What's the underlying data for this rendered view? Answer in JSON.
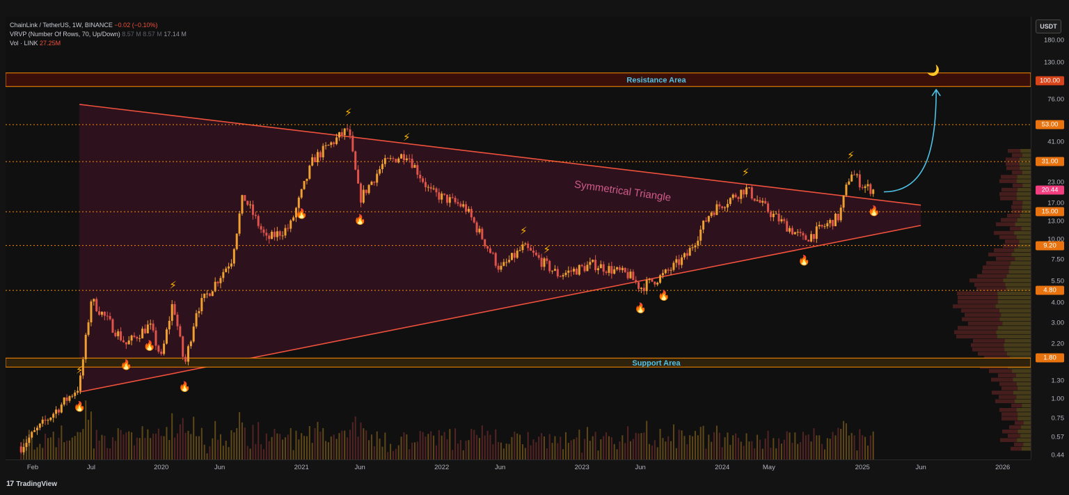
{
  "legend": {
    "symbol": "ChainLink / TetherUS, 1W, BINANCE",
    "change": "−0.02 (−0.10%)",
    "vrvp": "VRVP (Number Of Rows, 70, Up/Down)",
    "vrvp_v1": "8.57 M",
    "vrvp_v2": "8.57 M",
    "vrvp_v3": "17.14 M",
    "vol_label": "Vol · LINK",
    "vol_value": "27.25M"
  },
  "currency_button": "USDT",
  "footer": {
    "logo": "17",
    "brand": "TradingView"
  },
  "colors": {
    "background": "#101010",
    "accent_red": "#f0513c",
    "annotation_blue": "#4fc3e8",
    "level_orange": "#ff8c00",
    "triangle_fill": "#3a1424",
    "current_price_tag": "#f23d7f"
  },
  "chart_data": {
    "type": "candlestick",
    "scale": "log",
    "y_ticks": [
      180,
      130,
      100,
      76,
      53,
      41,
      31,
      23,
      20.44,
      17,
      15,
      13,
      10,
      9.2,
      7.5,
      5.5,
      4.8,
      4,
      3,
      2.2,
      1.8,
      1.3,
      1,
      0.75,
      0.57,
      0.44
    ],
    "y_tick_labels": [
      "180.00",
      "130.00",
      "100.00",
      "76.00",
      "53.00",
      "41.00",
      "31.00",
      "23.00",
      "20.44",
      "17.00",
      "15.00",
      "13.00",
      "10.00",
      "9.20",
      "7.50",
      "5.50",
      "4.80",
      "4.00",
      "3.00",
      "2.20",
      "1.80",
      "1.30",
      "1.00",
      "0.75",
      "0.57",
      "0.44"
    ],
    "highlighted_levels": [
      {
        "label": "100.00",
        "value": 100,
        "style": "resistance"
      },
      {
        "label": "53.00",
        "value": 53,
        "style": "level"
      },
      {
        "label": "31.00",
        "value": 31,
        "style": "level"
      },
      {
        "label": "20.44",
        "value": 20.44,
        "style": "current"
      },
      {
        "label": "15.00",
        "value": 15,
        "style": "level"
      },
      {
        "label": "9.20",
        "value": 9.2,
        "style": "level"
      },
      {
        "label": "4.80",
        "value": 4.8,
        "style": "level"
      },
      {
        "label": "1.80",
        "value": 1.8,
        "style": "support"
      }
    ],
    "x_ticks": [
      "Feb",
      "Jul",
      "2020",
      "Jun",
      "2021",
      "Jun",
      "2022",
      "Jun",
      "2023",
      "Jun",
      "2024",
      "May",
      "2025",
      "Jun",
      "2026"
    ],
    "x_tick_dates": [
      "2019-02",
      "2019-07",
      "2020-01",
      "2020-06",
      "2021-01",
      "2021-06",
      "2022-01",
      "2022-06",
      "2023-01",
      "2023-06",
      "2024-01",
      "2024-05",
      "2025-01",
      "2025-06",
      "2026-01"
    ],
    "zones": [
      {
        "label": "Resistance Area",
        "low": 92,
        "high": 112
      },
      {
        "label": "Support Area",
        "low": 1.58,
        "high": 1.8
      }
    ],
    "pattern": {
      "label": "Symmetrical Triangle",
      "upper_line": [
        {
          "date": "2019-06",
          "price": 71
        },
        {
          "date": "2025-06",
          "price": 16.5
        }
      ],
      "lower_line": [
        {
          "date": "2019-06",
          "price": 1.1
        },
        {
          "date": "2025-06",
          "price": 12.3
        }
      ]
    },
    "price_path": [
      {
        "date": "2019-01",
        "price": 0.5
      },
      {
        "date": "2019-06",
        "price": 1.2
      },
      {
        "date": "2019-07",
        "price": 4.2
      },
      {
        "date": "2019-10",
        "price": 2.2
      },
      {
        "date": "2019-12",
        "price": 2.9
      },
      {
        "date": "2020-01",
        "price": 1.8
      },
      {
        "date": "2020-02",
        "price": 4.1
      },
      {
        "date": "2020-03",
        "price": 1.6
      },
      {
        "date": "2020-04",
        "price": 3.6
      },
      {
        "date": "2020-07",
        "price": 7.5
      },
      {
        "date": "2020-08",
        "price": 19
      },
      {
        "date": "2020-10",
        "price": 10
      },
      {
        "date": "2020-12",
        "price": 12
      },
      {
        "date": "2021-02",
        "price": 32
      },
      {
        "date": "2021-05",
        "price": 50
      },
      {
        "date": "2021-06",
        "price": 18
      },
      {
        "date": "2021-08",
        "price": 30
      },
      {
        "date": "2021-10",
        "price": 35
      },
      {
        "date": "2021-12",
        "price": 20
      },
      {
        "date": "2022-03",
        "price": 16
      },
      {
        "date": "2022-06",
        "price": 6.5
      },
      {
        "date": "2022-08",
        "price": 9
      },
      {
        "date": "2022-11",
        "price": 6
      },
      {
        "date": "2023-02",
        "price": 7
      },
      {
        "date": "2023-05",
        "price": 6
      },
      {
        "date": "2023-06",
        "price": 5
      },
      {
        "date": "2023-08",
        "price": 6
      },
      {
        "date": "2023-10",
        "price": 8
      },
      {
        "date": "2023-12",
        "price": 15
      },
      {
        "date": "2024-03",
        "price": 21
      },
      {
        "date": "2024-05",
        "price": 15
      },
      {
        "date": "2024-08",
        "price": 10
      },
      {
        "date": "2024-11",
        "price": 14
      },
      {
        "date": "2024-12",
        "price": 27
      },
      {
        "date": "2025-01",
        "price": 22
      },
      {
        "date": "2025-02",
        "price": 20.44
      }
    ],
    "markers": {
      "lightning": [
        {
          "date": "2019-06"
        },
        {
          "date": "2020-02"
        },
        {
          "date": "2021-05"
        },
        {
          "date": "2021-10"
        },
        {
          "date": "2022-08"
        },
        {
          "date": "2022-10"
        },
        {
          "date": "2024-03"
        },
        {
          "date": "2024-12"
        }
      ],
      "flame": [
        {
          "date": "2019-06"
        },
        {
          "date": "2019-10"
        },
        {
          "date": "2019-12"
        },
        {
          "date": "2020-03"
        },
        {
          "date": "2021-01"
        },
        {
          "date": "2021-06"
        },
        {
          "date": "2023-06"
        },
        {
          "date": "2023-08"
        },
        {
          "date": "2024-08"
        },
        {
          "date": "2025-02"
        }
      ],
      "moon": [
        {
          "date": "2025-06"
        }
      ]
    },
    "forecast_arrow": {
      "from": {
        "date": "2025-02",
        "price": 20
      },
      "to": {
        "date": "2025-06",
        "price": 88
      },
      "color": "#4fc3e8"
    },
    "volume_label": "Vol · LINK",
    "volume_profile": "VRVP"
  }
}
